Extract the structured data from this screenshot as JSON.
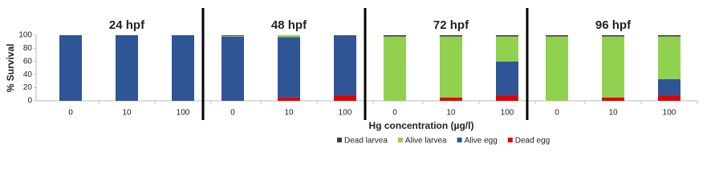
{
  "chart_data": {
    "type": "stacked-bar",
    "ylabel": "% Survival",
    "xlabel": "Hg concentration (µg/l)",
    "ylim": [
      0,
      100
    ],
    "yticks": [
      0,
      20,
      40,
      60,
      80,
      100
    ],
    "legend": [
      {
        "name": "Dead larvea",
        "color": "#404040"
      },
      {
        "name": "Alive larvea",
        "color": "#92d050"
      },
      {
        "name": "Alive egg",
        "color": "#2f5597"
      },
      {
        "name": "Dead egg",
        "color": "#e00000"
      }
    ],
    "panels": [
      {
        "title": "24 hpf",
        "categories": [
          "0",
          "10",
          "100"
        ],
        "series": [
          {
            "values": [
              0,
              0,
              0
            ]
          },
          {
            "values": [
              0,
              0,
              0
            ]
          },
          {
            "values": [
              100,
              100,
              100
            ]
          },
          {
            "values": [
              0,
              0,
              0
            ]
          }
        ]
      },
      {
        "title": "48 hpf",
        "categories": [
          "0",
          "10",
          "100"
        ],
        "series": [
          {
            "values": [
              1,
              0,
              1
            ]
          },
          {
            "values": [
              1,
              3,
              0
            ]
          },
          {
            "values": [
              98,
              92,
              91
            ]
          },
          {
            "values": [
              0,
              5,
              8
            ]
          }
        ]
      },
      {
        "title": "72 hpf",
        "categories": [
          "0",
          "10",
          "100"
        ],
        "series": [
          {
            "values": [
              2,
              2,
              2
            ]
          },
          {
            "values": [
              98,
              93,
              38
            ]
          },
          {
            "values": [
              0,
              0,
              52
            ]
          },
          {
            "values": [
              0,
              5,
              8
            ]
          }
        ]
      },
      {
        "title": "96 hpf",
        "categories": [
          "0",
          "10",
          "100"
        ],
        "series": [
          {
            "values": [
              2,
              2,
              2
            ]
          },
          {
            "values": [
              98,
              93,
              65
            ]
          },
          {
            "values": [
              0,
              0,
              25
            ]
          },
          {
            "values": [
              0,
              5,
              8
            ]
          }
        ]
      }
    ]
  }
}
